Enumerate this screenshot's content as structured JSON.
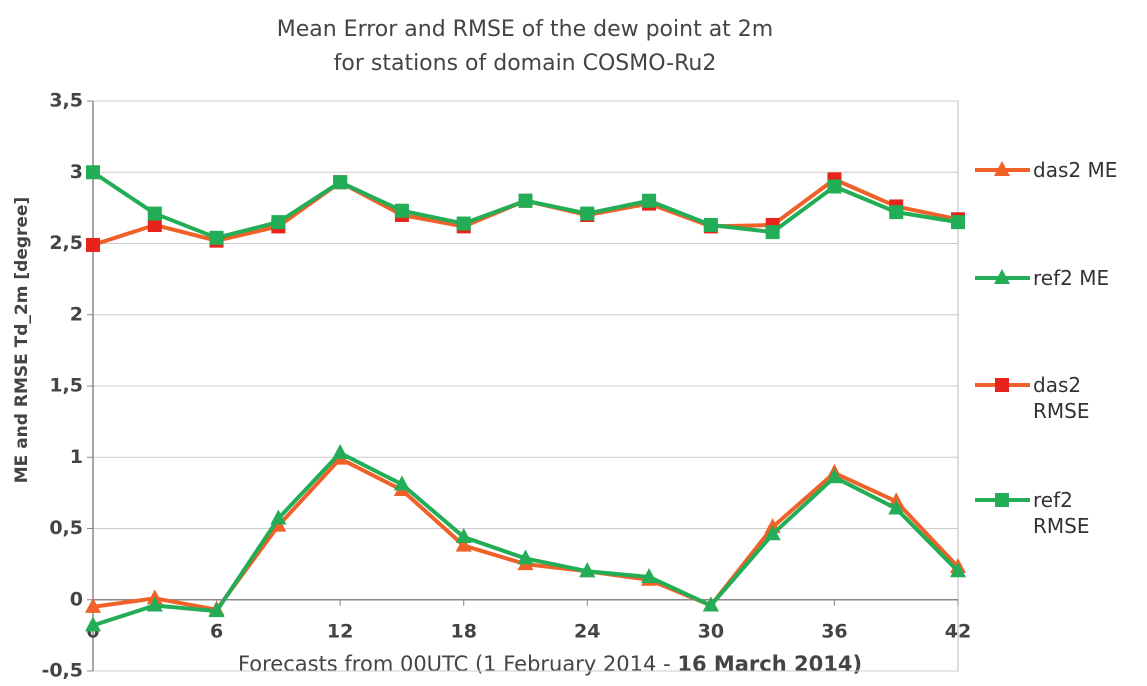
{
  "chart_data": {
    "type": "line",
    "title": [
      "Mean Error and RMSE of the dew point at 2m",
      "for stations of domain COSMO-Ru2"
    ],
    "ylabel": "ME and RMSE  Td_2m  [degree]",
    "xlabel": "Forecasts from 00UTC (1 February 2014 - ",
    "xlabel_bold": "16 March 2014)",
    "x": [
      0,
      3,
      6,
      9,
      12,
      15,
      18,
      21,
      24,
      27,
      30,
      33,
      36,
      39,
      42
    ],
    "xlim": [
      0,
      42
    ],
    "xticks": [
      0,
      6,
      12,
      18,
      24,
      30,
      36,
      42
    ],
    "ylim": [
      -0.5,
      3.5
    ],
    "yticks": [
      {
        "value": -0.5,
        "label": "-0,5"
      },
      0,
      {
        "value": 0.5,
        "label": "0,5"
      },
      1,
      {
        "value": 1.5,
        "label": "1,5"
      },
      2,
      {
        "value": 2.5,
        "label": "2,5"
      },
      3,
      {
        "value": 3.5,
        "label": "3,5"
      }
    ],
    "grid": true,
    "legend": "right",
    "series": [
      {
        "name": "das2 ME",
        "color": "#ef6129",
        "marker": "triangle",
        "marker_color": "#ef6129",
        "values": [
          -0.05,
          0.01,
          -0.07,
          0.52,
          0.99,
          0.77,
          0.38,
          0.25,
          0.2,
          0.14,
          -0.04,
          0.51,
          0.89,
          0.69,
          0.23
        ]
      },
      {
        "name": "ref2 ME",
        "color": "#22ad56",
        "marker": "triangle",
        "marker_color": "#22ad56",
        "values": [
          -0.18,
          -0.04,
          -0.08,
          0.57,
          1.03,
          0.81,
          0.44,
          0.29,
          0.2,
          0.16,
          -0.04,
          0.46,
          0.86,
          0.64,
          0.2
        ]
      },
      {
        "name": "das2 RMSE",
        "color": "#ef6129",
        "marker": "square",
        "marker_color": "#e8231b",
        "values": [
          2.49,
          2.63,
          2.52,
          2.62,
          2.93,
          2.7,
          2.62,
          2.8,
          2.7,
          2.78,
          2.62,
          2.63,
          2.95,
          2.76,
          2.67
        ]
      },
      {
        "name": "ref2 RMSE",
        "color": "#22ad56",
        "marker": "square",
        "marker_color": "#22ad56",
        "values": [
          3.0,
          2.71,
          2.54,
          2.65,
          2.93,
          2.73,
          2.64,
          2.8,
          2.71,
          2.8,
          2.63,
          2.58,
          2.9,
          2.72,
          2.65
        ]
      }
    ]
  }
}
